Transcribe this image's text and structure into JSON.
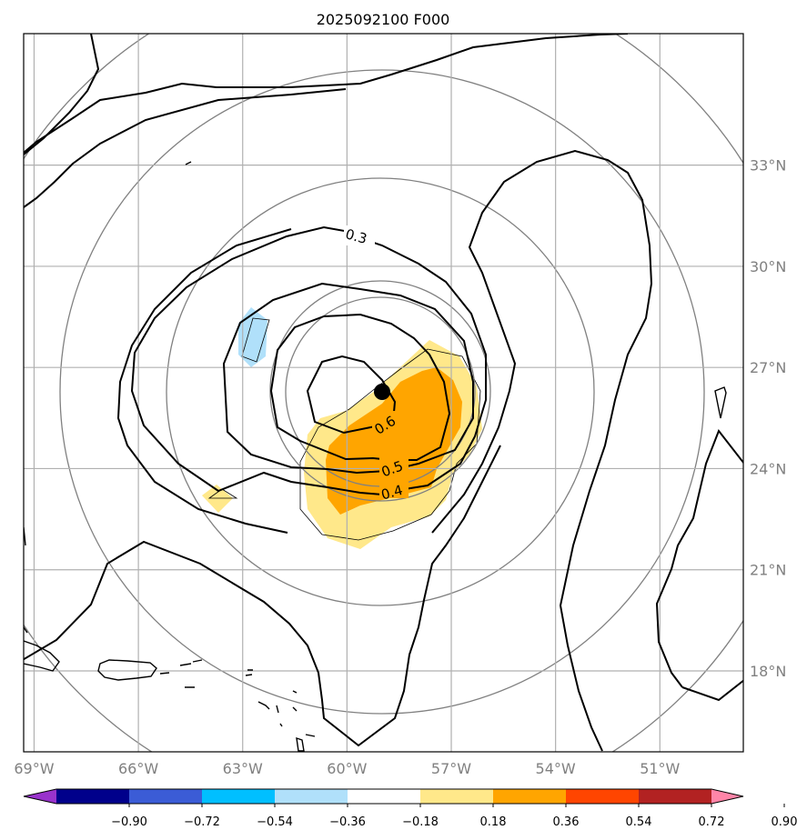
{
  "title": "2025092100 F000",
  "map": {
    "lon_range": [
      -69.3,
      -48.6
    ],
    "lat_range": [
      15.6,
      36.9
    ],
    "lon_ticks": [
      "69°W",
      "66°W",
      "63°W",
      "60°W",
      "57°W",
      "54°W",
      "51°W"
    ],
    "lat_ticks": [
      "18°N",
      "21°N",
      "24°N",
      "27°N",
      "30°N",
      "33°N"
    ],
    "grid": true,
    "center": {
      "lon": -59.35,
      "lat": 25.9
    },
    "contour_labels": [
      "0.3",
      "0.6",
      "0.5",
      "0.4"
    ]
  },
  "colorbar": {
    "ticks": [
      "−0.90",
      "−0.72",
      "−0.54",
      "−0.36",
      "−0.18",
      "0.18",
      "0.36",
      "0.54",
      "0.72",
      "0.90"
    ],
    "colors": [
      "#9933cc",
      "#00008b",
      "#3b5cd6",
      "#00bfff",
      "#b0e0fa",
      "#ffffff",
      "#ffe88a",
      "#ffa500",
      "#ff4500",
      "#b22222",
      "#ff85a8"
    ]
  },
  "colors": {
    "shade_light": "#ffe88a",
    "shade_strong": "#ffa500",
    "shade_negative": "#b0e0fa",
    "range_rings": "#808080",
    "grid": "#b0b0b0"
  }
}
